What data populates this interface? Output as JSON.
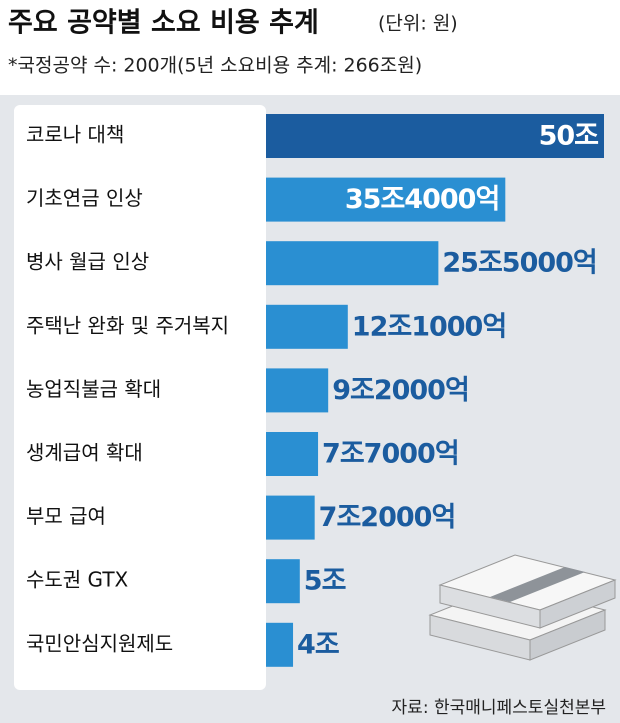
{
  "chart_data": {
    "type": "bar",
    "orientation": "horizontal",
    "title": "주요 공약별 소요 비용 추계",
    "subtitle": "(단위: 원)",
    "note": "*국정공약 수: 200개(5년 소요비용 추계: 266조원)",
    "source": "자료: 한국매니페스토실천본부",
    "categories": [
      "코로나 대책",
      "기초연금 인상",
      "병사 월급 인상",
      "주택난 완화 및 주거복지",
      "농업직불금 확대",
      "생계급여 확대",
      "부모 급여",
      "수도권 GTX",
      "국민안심지원제도"
    ],
    "values": [
      50,
      35.4,
      25.5,
      12.1,
      9.2,
      7.7,
      7.2,
      5,
      4
    ],
    "value_labels": [
      "50조",
      "35조4000억",
      "25조5000억",
      "12조1000억",
      "9조2000억",
      "7조7000억",
      "7조2000억",
      "5조",
      "4조"
    ],
    "colors": [
      "#1b5c9f",
      "#2a8fd2",
      "#2a8fd2",
      "#2a8fd2",
      "#2a8fd2",
      "#2a8fd2",
      "#2a8fd2",
      "#2a8fd2",
      "#2a8fd2"
    ],
    "xlim": [
      0,
      50
    ]
  }
}
